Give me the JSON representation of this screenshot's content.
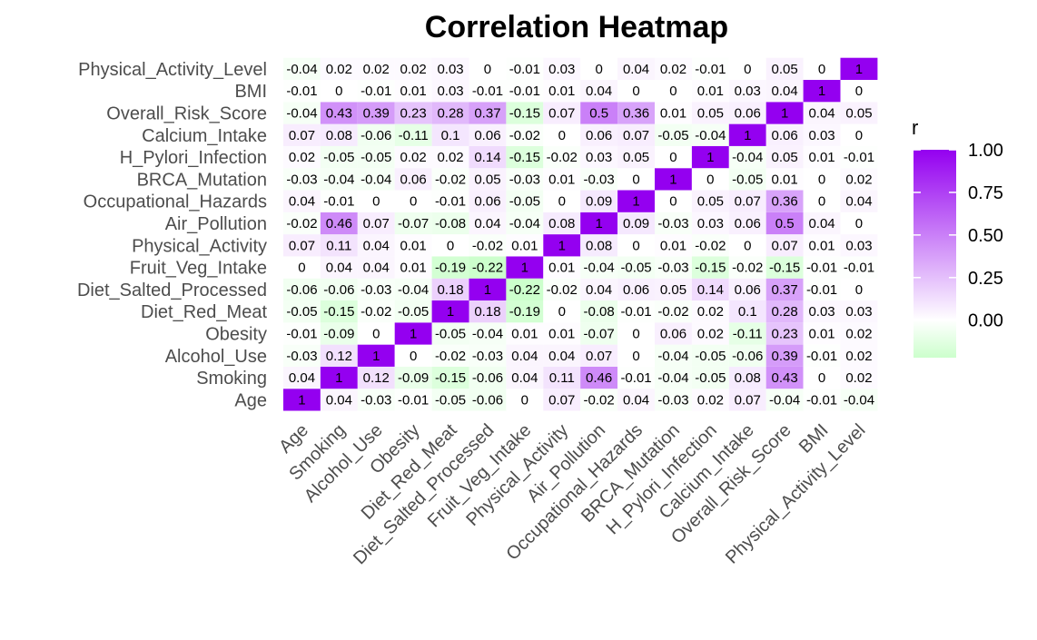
{
  "chart_data": {
    "type": "heatmap",
    "title": "Correlation Heatmap",
    "variables": [
      "Age",
      "Smoking",
      "Alcohol_Use",
      "Obesity",
      "Diet_Red_Meat",
      "Diet_Salted_Processed",
      "Fruit_Veg_Intake",
      "Physical_Activity",
      "Air_Pollution",
      "Occupational_Hazards",
      "BRCA_Mutation",
      "H_Pylori_Infection",
      "Calcium_Intake",
      "Overall_Risk_Score",
      "BMI",
      "Physical_Activity_Level"
    ],
    "rows": [
      {
        "name": "Age",
        "values": [
          1,
          0.04,
          -0.03,
          -0.01,
          -0.05,
          -0.06,
          0,
          0.07,
          -0.02,
          0.04,
          -0.03,
          0.02,
          0.07,
          -0.04,
          -0.01,
          -0.04
        ],
        "labels": [
          "1",
          "0.04",
          "-0.03",
          "-0.01",
          "-0.05",
          "-0.06",
          "0",
          "0.07",
          "-0.02",
          "0.04",
          "-0.03",
          "0.02",
          "0.07",
          "-0.04",
          "-0.01",
          "-0.04"
        ]
      },
      {
        "name": "Smoking",
        "values": [
          0.04,
          1,
          0.12,
          -0.09,
          -0.15,
          -0.06,
          0.04,
          0.11,
          0.46,
          -0.01,
          -0.04,
          -0.05,
          0.08,
          0.43,
          0,
          0.02
        ],
        "labels": [
          "0.04",
          "1",
          "0.12",
          "-0.09",
          "-0.15",
          "-0.06",
          "0.04",
          "0.11",
          "0.46",
          "-0.01",
          "-0.04",
          "-0.05",
          "0.08",
          "0.43",
          "0",
          "0.02"
        ]
      },
      {
        "name": "Alcohol_Use",
        "values": [
          -0.03,
          0.12,
          1,
          0,
          -0.02,
          -0.03,
          0.04,
          0.04,
          0.07,
          0,
          -0.04,
          -0.05,
          -0.06,
          0.39,
          -0.01,
          0.02
        ],
        "labels": [
          "-0.03",
          "0.12",
          "1",
          "0",
          "-0.02",
          "-0.03",
          "0.04",
          "0.04",
          "0.07",
          "0",
          "-0.04",
          "-0.05",
          "-0.06",
          "0.39",
          "-0.01",
          "0.02"
        ]
      },
      {
        "name": "Obesity",
        "values": [
          -0.01,
          -0.09,
          0,
          1,
          -0.05,
          -0.04,
          0.01,
          0.01,
          -0.07,
          0,
          0.06,
          0.02,
          -0.11,
          0.23,
          0.01,
          0.02
        ],
        "labels": [
          "-0.01",
          "-0.09",
          "0",
          "1",
          "-0.05",
          "-0.04",
          "0.01",
          "0.01",
          "-0.07",
          "0",
          "0.06",
          "0.02",
          "-0.11",
          "0.23",
          "0.01",
          "0.02"
        ]
      },
      {
        "name": "Diet_Red_Meat",
        "values": [
          -0.05,
          -0.15,
          -0.02,
          -0.05,
          1,
          0.18,
          -0.19,
          0,
          -0.08,
          -0.01,
          -0.02,
          0.02,
          0.1,
          0.28,
          0.03,
          0.03
        ],
        "labels": [
          "-0.05",
          "-0.15",
          "-0.02",
          "-0.05",
          "1",
          "0.18",
          "-0.19",
          "0",
          "-0.08",
          "-0.01",
          "-0.02",
          "0.02",
          "0.1",
          "0.28",
          "0.03",
          "0.03"
        ]
      },
      {
        "name": "Diet_Salted_Processed",
        "values": [
          -0.06,
          -0.06,
          -0.03,
          -0.04,
          0.18,
          1,
          -0.22,
          -0.02,
          0.04,
          0.06,
          0.05,
          0.14,
          0.06,
          0.37,
          -0.01,
          0
        ],
        "labels": [
          "-0.06",
          "-0.06",
          "-0.03",
          "-0.04",
          "0.18",
          "1",
          "-0.22",
          "-0.02",
          "0.04",
          "0.06",
          "0.05",
          "0.14",
          "0.06",
          "0.37",
          "-0.01",
          "0"
        ]
      },
      {
        "name": "Fruit_Veg_Intake",
        "values": [
          0,
          0.04,
          0.04,
          0.01,
          -0.19,
          -0.22,
          1,
          0.01,
          -0.04,
          -0.05,
          -0.03,
          -0.15,
          -0.02,
          -0.15,
          -0.01,
          -0.01
        ],
        "labels": [
          "0",
          "0.04",
          "0.04",
          "0.01",
          "-0.19",
          "-0.22",
          "1",
          "0.01",
          "-0.04",
          "-0.05",
          "-0.03",
          "-0.15",
          "-0.02",
          "-0.15",
          "-0.01",
          "-0.01"
        ]
      },
      {
        "name": "Physical_Activity",
        "values": [
          0.07,
          0.11,
          0.04,
          0.01,
          0,
          -0.02,
          0.01,
          1,
          0.08,
          0,
          0.01,
          -0.02,
          0,
          0.07,
          0.01,
          0.03
        ],
        "labels": [
          "0.07",
          "0.11",
          "0.04",
          "0.01",
          "0",
          "-0.02",
          "0.01",
          "1",
          "0.08",
          "0",
          "0.01",
          "-0.02",
          "0",
          "0.07",
          "0.01",
          "0.03"
        ]
      },
      {
        "name": "Air_Pollution",
        "values": [
          -0.02,
          0.46,
          0.07,
          -0.07,
          -0.08,
          0.04,
          -0.04,
          0.08,
          1,
          0.09,
          -0.03,
          0.03,
          0.06,
          0.5,
          0.04,
          0
        ],
        "labels": [
          "-0.02",
          "0.46",
          "0.07",
          "-0.07",
          "-0.08",
          "0.04",
          "-0.04",
          "0.08",
          "1",
          "0.09",
          "-0.03",
          "0.03",
          "0.06",
          "0.5",
          "0.04",
          "0"
        ]
      },
      {
        "name": "Occupational_Hazards",
        "values": [
          0.04,
          -0.01,
          0,
          0,
          -0.01,
          0.06,
          -0.05,
          0,
          0.09,
          1,
          0,
          0.05,
          0.07,
          0.36,
          0,
          0.04
        ],
        "labels": [
          "0.04",
          "-0.01",
          "0",
          "0",
          "-0.01",
          "0.06",
          "-0.05",
          "0",
          "0.09",
          "1",
          "0",
          "0.05",
          "0.07",
          "0.36",
          "0",
          "0.04"
        ]
      },
      {
        "name": "BRCA_Mutation",
        "values": [
          -0.03,
          -0.04,
          -0.04,
          0.06,
          -0.02,
          0.05,
          -0.03,
          0.01,
          -0.03,
          0,
          1,
          0,
          -0.05,
          0.01,
          0,
          0.02
        ],
        "labels": [
          "-0.03",
          "-0.04",
          "-0.04",
          "0.06",
          "-0.02",
          "0.05",
          "-0.03",
          "0.01",
          "-0.03",
          "0",
          "1",
          "0",
          "-0.05",
          "0.01",
          "0",
          "0.02"
        ]
      },
      {
        "name": "H_Pylori_Infection",
        "values": [
          0.02,
          -0.05,
          -0.05,
          0.02,
          0.02,
          0.14,
          -0.15,
          -0.02,
          0.03,
          0.05,
          0,
          1,
          -0.04,
          0.05,
          0.01,
          -0.01
        ],
        "labels": [
          "0.02",
          "-0.05",
          "-0.05",
          "0.02",
          "0.02",
          "0.14",
          "-0.15",
          "-0.02",
          "0.03",
          "0.05",
          "0",
          "1",
          "-0.04",
          "0.05",
          "0.01",
          "-0.01"
        ]
      },
      {
        "name": "Calcium_Intake",
        "values": [
          0.07,
          0.08,
          -0.06,
          -0.11,
          0.1,
          0.06,
          -0.02,
          0,
          0.06,
          0.07,
          -0.05,
          -0.04,
          1,
          0.06,
          0.03,
          0
        ],
        "labels": [
          "0.07",
          "0.08",
          "-0.06",
          "-0.11",
          "0.1",
          "0.06",
          "-0.02",
          "0",
          "0.06",
          "0.07",
          "-0.05",
          "-0.04",
          "1",
          "0.06",
          "0.03",
          "0"
        ]
      },
      {
        "name": "Overall_Risk_Score",
        "values": [
          -0.04,
          0.43,
          0.39,
          0.23,
          0.28,
          0.37,
          -0.15,
          0.07,
          0.5,
          0.36,
          0.01,
          0.05,
          0.06,
          1,
          0.04,
          0.05
        ],
        "labels": [
          "-0.04",
          "0.43",
          "0.39",
          "0.23",
          "0.28",
          "0.37",
          "-0.15",
          "0.07",
          "0.5",
          "0.36",
          "0.01",
          "0.05",
          "0.06",
          "1",
          "0.04",
          "0.05"
        ]
      },
      {
        "name": "BMI",
        "values": [
          -0.01,
          0,
          -0.01,
          0.01,
          0.03,
          -0.01,
          -0.01,
          0.01,
          0.04,
          0,
          0,
          0.01,
          0.03,
          0.04,
          1,
          0
        ],
        "labels": [
          "-0.01",
          "0",
          "-0.01",
          "0.01",
          "0.03",
          "-0.01",
          "-0.01",
          "0.01",
          "0.04",
          "0",
          "0",
          "0.01",
          "0.03",
          "0.04",
          "1",
          "0"
        ]
      },
      {
        "name": "Physical_Activity_Level",
        "values": [
          -0.04,
          0.02,
          0.02,
          0.02,
          0.03,
          0,
          -0.01,
          0.03,
          0,
          0.04,
          0.02,
          -0.01,
          0,
          0.05,
          0,
          1
        ],
        "labels": [
          "-0.04",
          "0.02",
          "0.02",
          "0.02",
          "0.03",
          "0",
          "-0.01",
          "0.03",
          "0",
          "0.04",
          "0.02",
          "-0.01",
          "0",
          "0.05",
          "0",
          "1"
        ]
      }
    ],
    "legend": {
      "title": "r",
      "ticks": [
        "0.00",
        "0.25",
        "0.50",
        "0.75",
        "1.00"
      ],
      "tick_values": [
        0,
        0.25,
        0.5,
        0.75,
        1
      ],
      "range": [
        -0.22,
        1
      ],
      "low_color": "#ccffcc",
      "mid_color": "#ffffff",
      "high_color": "#9400f0",
      "placement": "right"
    }
  }
}
